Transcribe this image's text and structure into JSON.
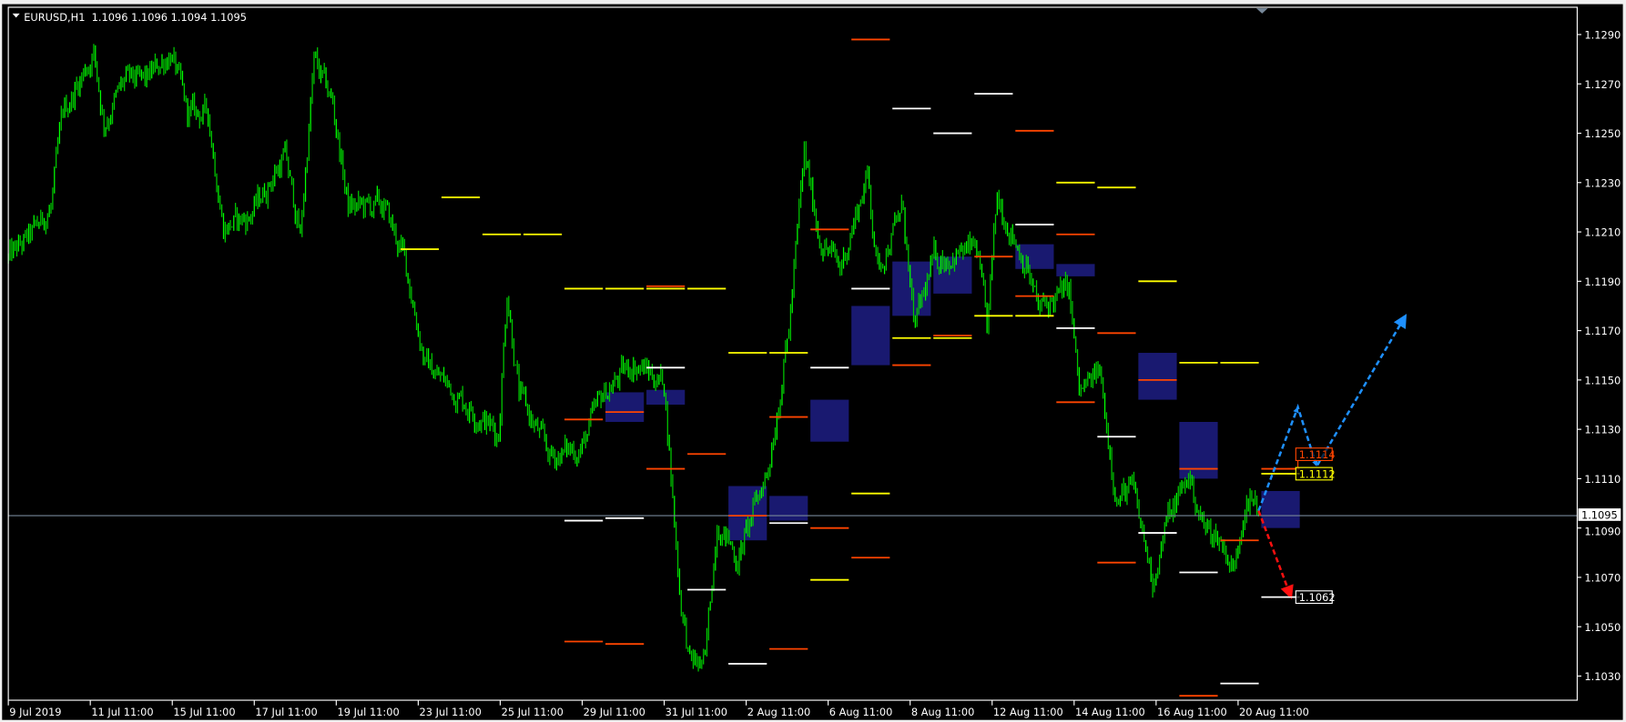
{
  "window": {
    "symbol_header": "EURUSD,H1  1.1096 1.1096 1.1094 1.1095",
    "current_price_label": "1.1095"
  },
  "chart_data": {
    "type": "candlestick-bars",
    "symbol": "EURUSD",
    "timeframe": "H1",
    "ohlc_header": {
      "open": 1.1096,
      "high": 1.1096,
      "low": 1.1094,
      "close": 1.1095
    },
    "current_price": 1.1095,
    "ylim": [
      1.1019,
      1.1305
    ],
    "y_ticks": [
      "1.1290",
      "1.1270",
      "1.1250",
      "1.1230",
      "1.1210",
      "1.1190",
      "1.1170",
      "1.1150",
      "1.1130",
      "1.1110",
      "1.1090",
      "1.1070",
      "1.1050",
      "1.1030"
    ],
    "x_ticks": [
      {
        "label": "9 Jul 2019",
        "t": "9 Jul 11:00"
      },
      {
        "label": "11 Jul 11:00",
        "t": "11 Jul 11:00"
      },
      {
        "label": "15 Jul 11:00",
        "t": "15 Jul 11:00"
      },
      {
        "label": "17 Jul 11:00",
        "t": "17 Jul 11:00"
      },
      {
        "label": "19 Jul 11:00",
        "t": "19 Jul 11:00"
      },
      {
        "label": "23 Jul 11:00",
        "t": "23 Jul 11:00"
      },
      {
        "label": "25 Jul 11:00",
        "t": "25 Jul 11:00"
      },
      {
        "label": "29 Jul 11:00",
        "t": "29 Jul 11:00"
      },
      {
        "label": "31 Jul 11:00",
        "t": "31 Jul 11:00"
      },
      {
        "label": "2 Aug 11:00",
        "t": "2 Aug 11:00"
      },
      {
        "label": "6 Aug 11:00",
        "t": "6 Aug 11:00"
      },
      {
        "label": "8 Aug 11:00",
        "t": "8 Aug 11:00"
      },
      {
        "label": "12 Aug 11:00",
        "t": "12 Aug 11:00"
      },
      {
        "label": "14 Aug 11:00",
        "t": "14 Aug 11:00"
      },
      {
        "label": "16 Aug 11:00",
        "t": "16 Aug 11:00"
      },
      {
        "label": "20 Aug 11:00",
        "t": "20 Aug 11:00"
      }
    ],
    "price_path": [
      [
        "9 Jul 11:00",
        1.1199
      ],
      [
        "10 Jul 00:00",
        1.1208
      ],
      [
        "10 Jul 12:00",
        1.122
      ],
      [
        "10 Jul 19:00",
        1.1258
      ],
      [
        "11 Jul 13:00",
        1.1283
      ],
      [
        "11 Jul 19:00",
        1.1254
      ],
      [
        "12 Jul 07:00",
        1.1271
      ],
      [
        "12 Jul 19:00",
        1.1271
      ],
      [
        "15 Jul 10:00",
        1.1283
      ],
      [
        "15 Jul 20:00",
        1.1258
      ],
      [
        "16 Jul 08:00",
        1.1258
      ],
      [
        "16 Jul 17:00",
        1.1212
      ],
      [
        "17 Jul 08:00",
        1.1216
      ],
      [
        "18 Jul 05:00",
        1.1241
      ],
      [
        "18 Jul 14:00",
        1.1208
      ],
      [
        "18 Jul 22:00",
        1.1279
      ],
      [
        "19 Jul 09:00",
        1.1262
      ],
      [
        "19 Jul 18:00",
        1.122
      ],
      [
        "22 Jul 15:00",
        1.122
      ],
      [
        "23 Jul 03:00",
        1.1199
      ],
      [
        "23 Jul 15:00",
        1.1157
      ],
      [
        "24 Jul 10:00",
        1.1144
      ],
      [
        "25 Jul 10:00",
        1.1128
      ],
      [
        "25 Jul 15:00",
        1.1187
      ],
      [
        "25 Jul 22:00",
        1.1144
      ],
      [
        "26 Jul 16:00",
        1.1119
      ],
      [
        "29 Jul 11:00",
        1.1123
      ],
      [
        "29 Jul 23:00",
        1.1144
      ],
      [
        "30 Jul 17:00",
        1.1157
      ],
      [
        "31 Jul 11:00",
        1.1149
      ],
      [
        "31 Jul 20:00",
        1.1065
      ],
      [
        "1 Aug 02:00",
        1.1035
      ],
      [
        "1 Aug 11:00",
        1.1035
      ],
      [
        "1 Aug 18:00",
        1.1094
      ],
      [
        "2 Aug 06:00",
        1.1077
      ],
      [
        "5 Aug 00:00",
        1.1115
      ],
      [
        "5 Aug 12:00",
        1.117
      ],
      [
        "5 Aug 21:00",
        1.1241
      ],
      [
        "6 Aug 06:00",
        1.1208
      ],
      [
        "6 Aug 18:00",
        1.1195
      ],
      [
        "7 Aug 10:00",
        1.1233
      ],
      [
        "7 Aug 16:00",
        1.1195
      ],
      [
        "8 Aug 07:00",
        1.122
      ],
      [
        "8 Aug 13:00",
        1.117
      ],
      [
        "9 Aug 01:00",
        1.1199
      ],
      [
        "12 Aug 02:00",
        1.1203
      ],
      [
        "12 Aug 08:00",
        1.117
      ],
      [
        "12 Aug 14:00",
        1.1224
      ],
      [
        "13 Aug 08:00",
        1.1195
      ],
      [
        "13 Aug 14:00",
        1.1178
      ],
      [
        "14 Aug 08:00",
        1.1187
      ],
      [
        "14 Aug 14:00",
        1.1144
      ],
      [
        "15 Aug 02:00",
        1.1153
      ],
      [
        "15 Aug 12:00",
        1.1102
      ],
      [
        "15 Aug 21:00",
        1.1106
      ],
      [
        "16 Aug 09:00",
        1.1069
      ],
      [
        "16 Aug 18:00",
        1.1094
      ],
      [
        "19 Aug 06:00",
        1.1111
      ],
      [
        "19 Aug 15:00",
        1.109
      ],
      [
        "20 Aug 00:00",
        1.1086
      ],
      [
        "20 Aug 09:00",
        1.1073
      ],
      [
        "20 Aug 16:00",
        1.1106
      ],
      [
        "20 Aug 23:00",
        1.1095
      ]
    ],
    "level_colors": {
      "yellow": "#ffff00",
      "white": "#ffffff",
      "orange": "#ff4500",
      "box": "#191970",
      "bars": "#00c800",
      "price_line": "#778899",
      "up_arrow": "#1e90ff",
      "down_arrow": "#ff1010"
    },
    "levels": [
      {
        "day": "23 Jul",
        "price": 1.1203,
        "color": "yellow"
      },
      {
        "day": "24 Jul",
        "price": 1.1224,
        "color": "yellow"
      },
      {
        "day": "25 Jul",
        "price": 1.1209,
        "color": "yellow"
      },
      {
        "day": "26 Jul",
        "price": 1.1209,
        "color": "yellow"
      },
      {
        "day": "29 Jul",
        "price": 1.1187,
        "color": "yellow"
      },
      {
        "day": "30 Jul",
        "price": 1.1187,
        "color": "yellow"
      },
      {
        "day": "31 Jul",
        "price": 1.1187,
        "color": "yellow"
      },
      {
        "day": "1 Aug",
        "price": 1.1187,
        "color": "yellow"
      },
      {
        "day": "2 Aug",
        "price": 1.1161,
        "color": "yellow"
      },
      {
        "day": "5 Aug",
        "price": 1.1161,
        "color": "yellow"
      },
      {
        "day": "6 Aug",
        "price": 1.1069,
        "color": "yellow"
      },
      {
        "day": "7 Aug",
        "price": 1.1104,
        "color": "yellow"
      },
      {
        "day": "8 Aug",
        "price": 1.1167,
        "color": "yellow"
      },
      {
        "day": "9 Aug",
        "price": 1.1167,
        "color": "yellow"
      },
      {
        "day": "12 Aug",
        "price": 1.1176,
        "color": "yellow"
      },
      {
        "day": "13 Aug",
        "price": 1.1176,
        "color": "yellow"
      },
      {
        "day": "14 Aug",
        "price": 1.123,
        "color": "yellow"
      },
      {
        "day": "15 Aug",
        "price": 1.1228,
        "color": "yellow"
      },
      {
        "day": "16 Aug",
        "price": 1.119,
        "color": "yellow"
      },
      {
        "day": "19 Aug",
        "price": 1.1157,
        "color": "yellow"
      },
      {
        "day": "20 Aug",
        "price": 1.1157,
        "color": "yellow"
      },
      {
        "day": "21 Aug",
        "price": 1.1112,
        "color": "yellow"
      },
      {
        "day": "29 Jul",
        "price": 1.1093,
        "color": "white"
      },
      {
        "day": "30 Jul",
        "price": 1.1094,
        "color": "white"
      },
      {
        "day": "31 Jul",
        "price": 1.1155,
        "color": "white"
      },
      {
        "day": "1 Aug",
        "price": 1.1065,
        "color": "white"
      },
      {
        "day": "2 Aug",
        "price": 1.1035,
        "color": "white"
      },
      {
        "day": "5 Aug",
        "price": 1.1092,
        "color": "white"
      },
      {
        "day": "6 Aug",
        "price": 1.1155,
        "color": "white"
      },
      {
        "day": "7 Aug",
        "price": 1.1187,
        "color": "white"
      },
      {
        "day": "8 Aug",
        "price": 1.126,
        "color": "white"
      },
      {
        "day": "9 Aug",
        "price": 1.125,
        "color": "white"
      },
      {
        "day": "12 Aug",
        "price": 1.1266,
        "color": "white"
      },
      {
        "day": "13 Aug",
        "price": 1.1213,
        "color": "white"
      },
      {
        "day": "14 Aug",
        "price": 1.1171,
        "color": "white"
      },
      {
        "day": "15 Aug",
        "price": 1.1127,
        "color": "white"
      },
      {
        "day": "16 Aug",
        "price": 1.1088,
        "color": "white"
      },
      {
        "day": "19 Aug",
        "price": 1.1072,
        "color": "white"
      },
      {
        "day": "20 Aug",
        "price": 1.1027,
        "color": "white"
      },
      {
        "day": "21 Aug",
        "price": 1.1062,
        "color": "white"
      },
      {
        "day": "29 Jul",
        "price": 1.1134,
        "color": "orange"
      },
      {
        "day": "30 Jul",
        "price": 1.1137,
        "color": "orange"
      },
      {
        "day": "31 Jul",
        "price": 1.1114,
        "color": "orange"
      },
      {
        "day": "1 Aug",
        "price": 1.112,
        "color": "orange"
      },
      {
        "day": "31 Jul",
        "price": 1.1188,
        "color": "orange"
      },
      {
        "day": "29 Jul",
        "price": 1.1044,
        "color": "orange"
      },
      {
        "day": "30 Jul",
        "price": 1.1043,
        "color": "orange"
      },
      {
        "day": "2 Aug",
        "price": 1.1095,
        "color": "orange"
      },
      {
        "day": "5 Aug",
        "price": 1.1041,
        "color": "orange"
      },
      {
        "day": "5 Aug",
        "price": 1.1135,
        "color": "orange"
      },
      {
        "day": "6 Aug",
        "price": 1.109,
        "color": "orange"
      },
      {
        "day": "6 Aug",
        "price": 1.1211,
        "color": "orange"
      },
      {
        "day": "7 Aug",
        "price": 1.1078,
        "color": "orange"
      },
      {
        "day": "7 Aug",
        "price": 1.1288,
        "color": "orange"
      },
      {
        "day": "8 Aug",
        "price": 1.1156,
        "color": "orange"
      },
      {
        "day": "9 Aug",
        "price": 1.1168,
        "color": "orange"
      },
      {
        "day": "12 Aug",
        "price": 1.12,
        "color": "orange"
      },
      {
        "day": "13 Aug",
        "price": 1.1251,
        "color": "orange"
      },
      {
        "day": "13 Aug",
        "price": 1.1184,
        "color": "orange"
      },
      {
        "day": "14 Aug",
        "price": 1.1209,
        "color": "orange"
      },
      {
        "day": "14 Aug",
        "price": 1.1141,
        "color": "orange"
      },
      {
        "day": "15 Aug",
        "price": 1.1169,
        "color": "orange"
      },
      {
        "day": "15 Aug",
        "price": 1.1076,
        "color": "orange"
      },
      {
        "day": "16 Aug",
        "price": 1.115,
        "color": "orange"
      },
      {
        "day": "19 Aug",
        "price": 1.1114,
        "color": "orange"
      },
      {
        "day": "19 Aug",
        "price": 1.1022,
        "color": "orange"
      },
      {
        "day": "20 Aug",
        "price": 1.1085,
        "color": "orange"
      },
      {
        "day": "21 Aug",
        "price": 1.1114,
        "color": "orange"
      }
    ],
    "boxes": [
      {
        "day": "30 Jul",
        "top": 1.1145,
        "bottom": 1.1133
      },
      {
        "day": "31 Jul",
        "top": 1.1146,
        "bottom": 1.114
      },
      {
        "day": "2 Aug",
        "top": 1.1107,
        "bottom": 1.1085
      },
      {
        "day": "5 Aug",
        "top": 1.1103,
        "bottom": 1.1093
      },
      {
        "day": "6 Aug",
        "top": 1.1142,
        "bottom": 1.1125
      },
      {
        "day": "7 Aug",
        "top": 1.118,
        "bottom": 1.1156
      },
      {
        "day": "8 Aug",
        "top": 1.1198,
        "bottom": 1.1176
      },
      {
        "day": "9 Aug",
        "top": 1.12,
        "bottom": 1.1185
      },
      {
        "day": "13 Aug",
        "top": 1.1205,
        "bottom": 1.1195
      },
      {
        "day": "14 Aug",
        "top": 1.1197,
        "bottom": 1.1192
      },
      {
        "day": "16 Aug",
        "top": 1.1161,
        "bottom": 1.1142
      },
      {
        "day": "19 Aug",
        "top": 1.1133,
        "bottom": 1.111
      },
      {
        "day": "21 Aug",
        "top": 1.1105,
        "bottom": 1.109
      }
    ],
    "projection_up": [
      [
        "20 Aug 23:00",
        1.1097
      ],
      [
        "21 Aug 22:00",
        1.1139
      ],
      [
        "22 Aug 09:00",
        1.1115
      ],
      [
        "26 Aug 13:00",
        1.1176
      ]
    ],
    "projection_down": [
      [
        "20 Aug 23:00",
        1.1097
      ],
      [
        "21 Aug 18:00",
        1.1062
      ]
    ],
    "price_labels": [
      {
        "text": "1.1114",
        "price": 1.1114,
        "color": "orange"
      },
      {
        "text": "1.1112",
        "price": 1.1112,
        "color": "yellow"
      },
      {
        "text": "1.1062",
        "price": 1.1062,
        "color": "white"
      }
    ]
  }
}
